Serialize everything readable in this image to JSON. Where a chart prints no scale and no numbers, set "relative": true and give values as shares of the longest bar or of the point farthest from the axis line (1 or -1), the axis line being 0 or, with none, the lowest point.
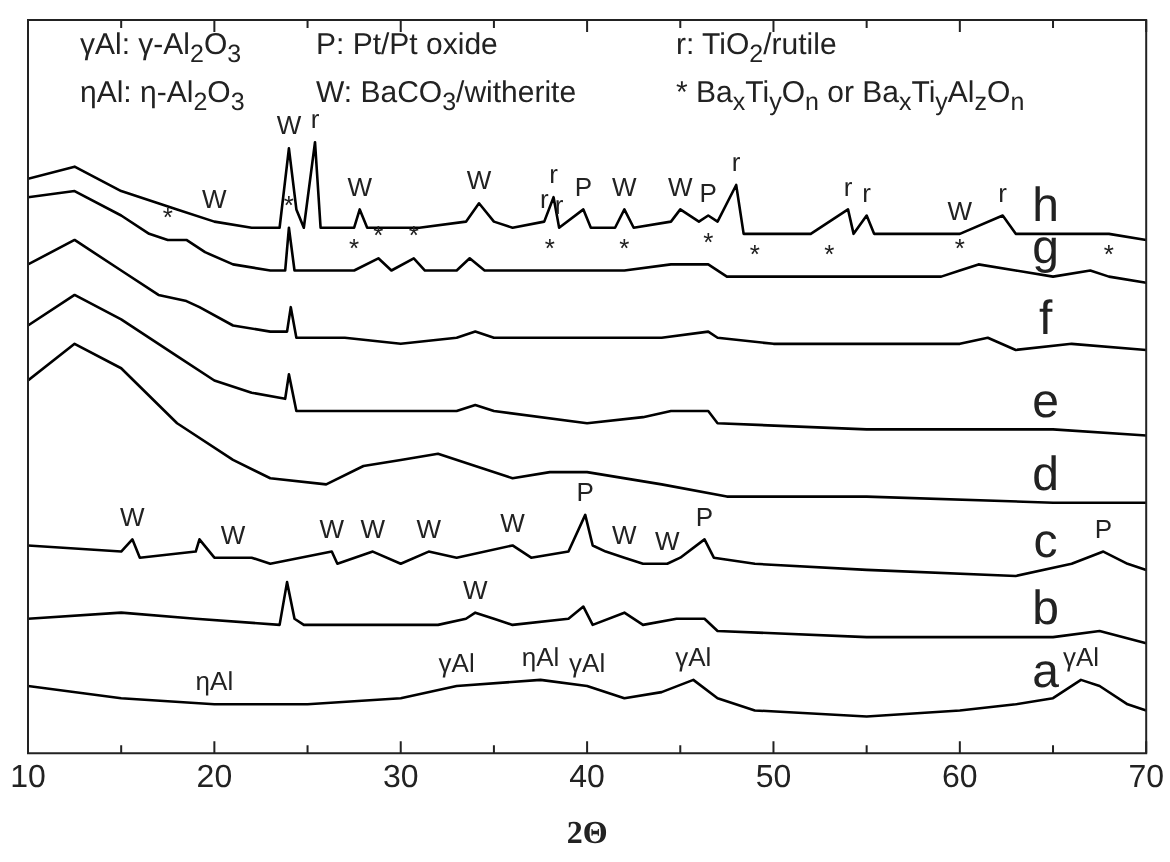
{
  "chart_data": {
    "type": "line",
    "relative": true,
    "xlabel": "2Θ",
    "xlim": [
      10,
      70
    ],
    "xticks": [
      10,
      {
        "value": 15,
        "label": null
      },
      20,
      {
        "value": 25,
        "label": null
      },
      30,
      {
        "value": 35,
        "label": null
      },
      40,
      {
        "value": 45,
        "label": null
      },
      50,
      {
        "value": 55,
        "label": null
      },
      60,
      {
        "value": 65,
        "label": null
      },
      70
    ],
    "grid": false,
    "legend": false,
    "marker": "none",
    "line_style": "solid",
    "series": [
      {
        "name": "h",
        "color": "#000000",
        "x": [
          10,
          12.5,
          15,
          18,
          20,
          22,
          23.5,
          24,
          24.4,
          24.8,
          25.4,
          25.7,
          27.5,
          27.8,
          28.2,
          31,
          33.5,
          34.2,
          35,
          36,
          37.7,
          38.2,
          38.5,
          39.8,
          40.2,
          41.5,
          42,
          42.5,
          44.5,
          45,
          46,
          46.5,
          47,
          48,
          48.4,
          52,
          54,
          54.3,
          55,
          55.4,
          60,
          62.3,
          63,
          67,
          68,
          70
        ],
        "values": [
          0.94,
          0.96,
          0.92,
          0.89,
          0.87,
          0.86,
          0.86,
          0.99,
          0.89,
          0.86,
          1,
          0.86,
          0.86,
          0.89,
          0.86,
          0.86,
          0.87,
          0.9,
          0.87,
          0.86,
          0.87,
          0.91,
          0.86,
          0.89,
          0.86,
          0.86,
          0.89,
          0.86,
          0.87,
          0.89,
          0.87,
          0.88,
          0.87,
          0.93,
          0.85,
          0.85,
          0.89,
          0.85,
          0.88,
          0.85,
          0.85,
          0.88,
          0.85,
          0.85,
          0.85,
          0.84
        ]
      },
      {
        "name": "g",
        "color": "#000000",
        "x": [
          10,
          12.5,
          15,
          16.5,
          17.5,
          18.5,
          19.5,
          21,
          23,
          23.8,
          24,
          24.3,
          26,
          27.5,
          28.8,
          29.5,
          30.7,
          31.3,
          33,
          33.7,
          34.5,
          37,
          38,
          40,
          42,
          44.5,
          46.5,
          47.5,
          49,
          50,
          53,
          55,
          59,
          60,
          61,
          63,
          65,
          67,
          68,
          70
        ],
        "values": [
          0.91,
          0.92,
          0.88,
          0.85,
          0.84,
          0.84,
          0.82,
          0.8,
          0.79,
          0.79,
          0.86,
          0.79,
          0.79,
          0.79,
          0.81,
          0.79,
          0.81,
          0.79,
          0.79,
          0.81,
          0.79,
          0.79,
          0.79,
          0.79,
          0.79,
          0.8,
          0.8,
          0.78,
          0.78,
          0.78,
          0.78,
          0.78,
          0.78,
          0.79,
          0.8,
          0.79,
          0.78,
          0.79,
          0.78,
          0.77
        ]
      },
      {
        "name": "f",
        "color": "#000000",
        "x": [
          10,
          12.5,
          15,
          17,
          18.5,
          19.2,
          21,
          23,
          23.9,
          24.1,
          24.4,
          27,
          30,
          33,
          34,
          35,
          40,
          44,
          46.5,
          47,
          50,
          55,
          60,
          61.5,
          63,
          66,
          70
        ],
        "values": [
          0.8,
          0.84,
          0.79,
          0.75,
          0.74,
          0.73,
          0.7,
          0.69,
          0.69,
          0.73,
          0.68,
          0.68,
          0.67,
          0.68,
          0.69,
          0.68,
          0.68,
          0.68,
          0.69,
          0.68,
          0.67,
          0.67,
          0.67,
          0.68,
          0.66,
          0.67,
          0.66
        ]
      },
      {
        "name": "e",
        "color": "#000000",
        "x": [
          10,
          12.5,
          15,
          18,
          20,
          22,
          23.8,
          24,
          24.4,
          27,
          30,
          33,
          34,
          35,
          40,
          43,
          44.5,
          46.5,
          47,
          55,
          65,
          70
        ],
        "values": [
          0.7,
          0.75,
          0.71,
          0.65,
          0.61,
          0.59,
          0.58,
          0.62,
          0.56,
          0.56,
          0.56,
          0.56,
          0.57,
          0.56,
          0.54,
          0.55,
          0.56,
          0.56,
          0.54,
          0.53,
          0.53,
          0.52
        ]
      },
      {
        "name": "d",
        "color": "#000000",
        "x": [
          10,
          12.5,
          15,
          18,
          21,
          23,
          26,
          28,
          30,
          32,
          34,
          36,
          38,
          40,
          44,
          47.5,
          55,
          65,
          70
        ],
        "values": [
          0.61,
          0.67,
          0.63,
          0.54,
          0.48,
          0.45,
          0.44,
          0.47,
          0.48,
          0.49,
          0.47,
          0.45,
          0.46,
          0.46,
          0.44,
          0.42,
          0.42,
          0.41,
          0.41
        ]
      },
      {
        "name": "c",
        "color": "#000000",
        "x": [
          10,
          15,
          15.6,
          16,
          19,
          19.2,
          20,
          21,
          22,
          23,
          26.3,
          26.6,
          28.5,
          30,
          31.5,
          33,
          36,
          37,
          39,
          39.9,
          40.3,
          41,
          42,
          43,
          44.3,
          45,
          46.3,
          46.8,
          49,
          55,
          63,
          66,
          67.7,
          69,
          70
        ],
        "values": [
          0.34,
          0.33,
          0.35,
          0.32,
          0.33,
          0.35,
          0.32,
          0.32,
          0.32,
          0.31,
          0.33,
          0.31,
          0.33,
          0.31,
          0.33,
          0.32,
          0.34,
          0.32,
          0.33,
          0.39,
          0.34,
          0.33,
          0.32,
          0.31,
          0.31,
          0.32,
          0.35,
          0.32,
          0.31,
          0.3,
          0.29,
          0.31,
          0.33,
          0.31,
          0.3
        ]
      },
      {
        "name": "b",
        "color": "#000000",
        "x": [
          10,
          15,
          19,
          23.5,
          23.9,
          24.3,
          24.8,
          28,
          32,
          33.5,
          34,
          35,
          36,
          39,
          39.8,
          40.3,
          42,
          43,
          44.8,
          46.3,
          47,
          55,
          65,
          67.5,
          70
        ],
        "values": [
          0.22,
          0.23,
          0.22,
          0.21,
          0.28,
          0.22,
          0.21,
          0.21,
          0.21,
          0.22,
          0.23,
          0.22,
          0.21,
          0.22,
          0.24,
          0.21,
          0.23,
          0.21,
          0.22,
          0.22,
          0.2,
          0.19,
          0.19,
          0.2,
          0.18
        ]
      },
      {
        "name": "a",
        "color": "#000000",
        "x": [
          10,
          15,
          20,
          25,
          30,
          33,
          37.5,
          40,
          42,
          44,
          45.7,
          47,
          49,
          55,
          60,
          63,
          65,
          66.5,
          67.5,
          69,
          70
        ],
        "values": [
          0.11,
          0.09,
          0.08,
          0.08,
          0.09,
          0.11,
          0.12,
          0.11,
          0.09,
          0.1,
          0.12,
          0.09,
          0.07,
          0.06,
          0.07,
          0.08,
          0.09,
          0.12,
          0.11,
          0.08,
          0.07
        ]
      }
    ],
    "annotations": [
      "γAl: γ-Al$_{2}$O$_{3}$",
      "P: Pt/Pt oxide",
      "r: TiO$_{2}$/rutile",
      "ηAl: η-Al$_{2}$O$_{3}$",
      "W: BaCO$_{3}$/witherite",
      "* Ba$_{x}$Ti$_{y}$O$_{n}$ or  Ba$_{x}$Ti$_{y}$Al$_{z}$O$_{n}$",
      {
        "text": "W",
        "x": 20,
        "y": 0.87
      },
      {
        "text": "W",
        "x": 24,
        "y": 0.99
      },
      {
        "text": "r",
        "x": 25.4,
        "y": 1
      },
      {
        "text": "W",
        "x": 27.8,
        "y": 0.89
      },
      {
        "text": "W",
        "x": 34.2,
        "y": 0.9
      },
      {
        "text": "r",
        "x": 37.7,
        "y": 0.87
      },
      {
        "text": "r",
        "x": 38.2,
        "y": 0.91
      },
      {
        "text": "r",
        "x": 38.5,
        "y": 0.86
      },
      {
        "text": "P",
        "x": 39.8,
        "y": 0.89
      },
      {
        "text": "W",
        "x": 42,
        "y": 0.89
      },
      {
        "text": "W",
        "x": 45,
        "y": 0.89
      },
      {
        "text": "P",
        "x": 46.5,
        "y": 0.88
      },
      {
        "text": "r",
        "x": 48,
        "y": 0.93
      },
      {
        "text": "r",
        "x": 54,
        "y": 0.89
      },
      {
        "text": "r",
        "x": 55,
        "y": 0.88
      },
      {
        "text": "W",
        "x": 60,
        "y": 0.85
      },
      {
        "text": "r",
        "x": 62.3,
        "y": 0.88
      },
      {
        "text": "*",
        "x": 17.5,
        "y": 0.84
      },
      {
        "text": "*",
        "x": 24,
        "y": 0.86
      },
      {
        "text": "*",
        "x": 27.5,
        "y": 0.79
      },
      {
        "text": "*",
        "x": 28.8,
        "y": 0.81
      },
      {
        "text": "*",
        "x": 30.7,
        "y": 0.81
      },
      {
        "text": "*",
        "x": 38,
        "y": 0.79
      },
      {
        "text": "*",
        "x": 42,
        "y": 0.79
      },
      {
        "text": "*",
        "x": 46.5,
        "y": 0.8
      },
      {
        "text": "*",
        "x": 49,
        "y": 0.78
      },
      {
        "text": "*",
        "x": 53,
        "y": 0.78
      },
      {
        "text": "*",
        "x": 60,
        "y": 0.79
      },
      {
        "text": "*",
        "x": 68,
        "y": 0.78
      },
      {
        "text": "W",
        "x": 15.6,
        "y": 0.35
      },
      {
        "text": "W",
        "x": 21,
        "y": 0.32
      },
      {
        "text": "W",
        "x": 26.3,
        "y": 0.33
      },
      {
        "text": "W",
        "x": 28.5,
        "y": 0.33
      },
      {
        "text": "W",
        "x": 31.5,
        "y": 0.33
      },
      {
        "text": "W",
        "x": 36,
        "y": 0.34
      },
      {
        "text": "P",
        "x": 39.9,
        "y": 0.39
      },
      {
        "text": "W",
        "x": 42,
        "y": 0.32
      },
      {
        "text": "W",
        "x": 44.3,
        "y": 0.31
      },
      {
        "text": "P",
        "x": 46.3,
        "y": 0.35
      },
      {
        "text": "P",
        "x": 67.7,
        "y": 0.33
      },
      {
        "text": "W",
        "x": 34,
        "y": 0.23
      },
      {
        "text": "ηAl",
        "x": 20,
        "y": 0.08
      },
      {
        "text": "γAl",
        "x": 33,
        "y": 0.11
      },
      {
        "text": "ηAl",
        "x": 37.5,
        "y": 0.12
      },
      {
        "text": "γAl",
        "x": 40,
        "y": 0.11
      },
      {
        "text": "γAl",
        "x": 45.7,
        "y": 0.12
      },
      {
        "text": "γAl",
        "x": 66.5,
        "y": 0.12
      }
    ]
  }
}
